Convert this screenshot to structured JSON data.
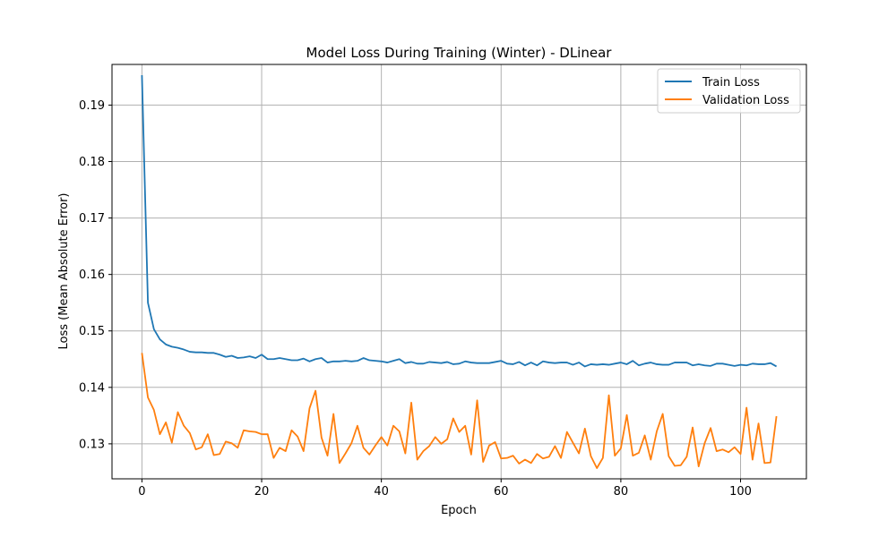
{
  "chart_data": {
    "type": "line",
    "title": "Model Loss During Training (Winter) - DLinear",
    "xlabel": "Epoch",
    "ylabel": "Loss (Mean Absolute Error)",
    "xlim": [
      -5,
      111
    ],
    "ylim": [
      0.1238,
      0.1972
    ],
    "x_ticks": [
      0,
      20,
      40,
      60,
      80,
      100
    ],
    "y_ticks": [
      0.13,
      0.14,
      0.15,
      0.16,
      0.17,
      0.18,
      0.19
    ],
    "grid": true,
    "legend_position": "top-right",
    "series": [
      {
        "name": "Train Loss",
        "color": "#1f77b4",
        "values": [
          0.1953,
          0.155,
          0.1503,
          0.1485,
          0.1476,
          0.1472,
          0.147,
          0.1467,
          0.1463,
          0.1462,
          0.1462,
          0.1461,
          0.1461,
          0.1458,
          0.1454,
          0.1456,
          0.1452,
          0.1453,
          0.1455,
          0.1452,
          0.1458,
          0.145,
          0.145,
          0.1452,
          0.145,
          0.1448,
          0.1448,
          0.1451,
          0.1446,
          0.145,
          0.1452,
          0.1444,
          0.1446,
          0.1446,
          0.1447,
          0.1446,
          0.1447,
          0.1452,
          0.1448,
          0.1447,
          0.1446,
          0.1444,
          0.1447,
          0.145,
          0.1443,
          0.1445,
          0.1442,
          0.1442,
          0.1445,
          0.1444,
          0.1443,
          0.1445,
          0.1441,
          0.1442,
          0.1446,
          0.1444,
          0.1443,
          0.1443,
          0.1443,
          0.1445,
          0.1447,
          0.1442,
          0.1441,
          0.1445,
          0.1439,
          0.1444,
          0.1439,
          0.1446,
          0.1444,
          0.1443,
          0.1444,
          0.1444,
          0.144,
          0.1444,
          0.1437,
          0.1441,
          0.144,
          0.1441,
          0.144,
          0.1442,
          0.1444,
          0.1441,
          0.1447,
          0.1439,
          0.1442,
          0.1444,
          0.1441,
          0.144,
          0.144,
          0.1444,
          0.1444,
          0.1444,
          0.1439,
          0.1441,
          0.1439,
          0.1438,
          0.1442,
          0.1442,
          0.144,
          0.1438,
          0.144,
          0.1439,
          0.1442,
          0.1441,
          0.1441,
          0.1443,
          0.1437
        ]
      },
      {
        "name": "Validation Loss",
        "color": "#ff7f0e",
        "values": [
          0.1461,
          0.1382,
          0.136,
          0.1317,
          0.1338,
          0.1302,
          0.1356,
          0.1332,
          0.1319,
          0.129,
          0.1294,
          0.1317,
          0.128,
          0.1282,
          0.1304,
          0.1301,
          0.1293,
          0.1324,
          0.1322,
          0.1321,
          0.1317,
          0.1317,
          0.1275,
          0.1293,
          0.1287,
          0.1324,
          0.1313,
          0.1287,
          0.1363,
          0.1394,
          0.1311,
          0.1279,
          0.1353,
          0.1266,
          0.1283,
          0.1301,
          0.1332,
          0.1293,
          0.1281,
          0.1297,
          0.1312,
          0.1297,
          0.1332,
          0.1322,
          0.1283,
          0.1373,
          0.1272,
          0.1287,
          0.1296,
          0.1312,
          0.13,
          0.1308,
          0.1345,
          0.1321,
          0.1332,
          0.1281,
          0.1377,
          0.1268,
          0.1297,
          0.1303,
          0.1274,
          0.1275,
          0.1279,
          0.1265,
          0.1272,
          0.1266,
          0.1282,
          0.1274,
          0.1277,
          0.1296,
          0.1275,
          0.1321,
          0.1302,
          0.1283,
          0.1327,
          0.1278,
          0.1257,
          0.1275,
          0.1386,
          0.1279,
          0.1292,
          0.1351,
          0.1279,
          0.1284,
          0.1315,
          0.1272,
          0.1322,
          0.1353,
          0.1278,
          0.1261,
          0.1262,
          0.1277,
          0.1329,
          0.126,
          0.1301,
          0.1328,
          0.1287,
          0.129,
          0.1285,
          0.1294,
          0.1282,
          0.1364,
          0.1272,
          0.1336,
          0.1266,
          0.1267,
          0.1349
        ]
      }
    ]
  }
}
